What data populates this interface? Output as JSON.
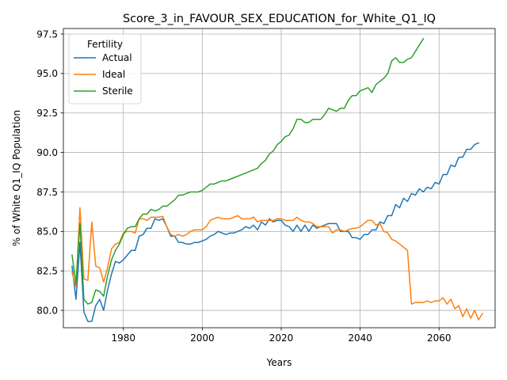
{
  "chart_data": {
    "type": "line",
    "title": "Score_3_in_FAVOUR_SEX_EDUCATION_for_White_Q1_IQ",
    "xlabel": "Years",
    "ylabel": "% of White Q1_IQ Population",
    "xlim": [
      1964.8,
      2074.2
    ],
    "ylim": [
      78.9,
      97.85
    ],
    "xticks": [
      1980,
      2000,
      2020,
      2040,
      2060
    ],
    "yticks": [
      80.0,
      82.5,
      85.0,
      87.5,
      90.0,
      92.5,
      95.0,
      97.5
    ],
    "xtick_labels": [
      "1980",
      "2000",
      "2020",
      "2040",
      "2060"
    ],
    "ytick_labels": [
      "80.0",
      "82.5",
      "85.0",
      "87.5",
      "90.0",
      "92.5",
      "95.0",
      "97.5"
    ],
    "grid": true,
    "legend": {
      "title": "Fertility",
      "placement": "top-left"
    },
    "series": [
      {
        "name": "Actual",
        "color": "#1f77b4",
        "points": [
          [
            1967,
            82.8
          ],
          [
            1968,
            80.7
          ],
          [
            1969,
            84.3
          ],
          [
            1970,
            79.9
          ],
          [
            1971,
            79.3
          ],
          [
            1972,
            79.3
          ],
          [
            1973,
            80.3
          ],
          [
            1974,
            80.7
          ],
          [
            1975,
            80.0
          ],
          [
            1976,
            81.3
          ],
          [
            1977,
            82.3
          ],
          [
            1978,
            83.1
          ],
          [
            1979,
            83.0
          ],
          [
            1980,
            83.2
          ],
          [
            1981,
            83.5
          ],
          [
            1982,
            83.8
          ],
          [
            1983,
            83.8
          ],
          [
            1984,
            84.7
          ],
          [
            1985,
            84.8
          ],
          [
            1986,
            85.2
          ],
          [
            1987,
            85.2
          ],
          [
            1988,
            85.8
          ],
          [
            1989,
            85.7
          ],
          [
            1990,
            85.8
          ],
          [
            1991,
            85.3
          ],
          [
            1992,
            84.7
          ],
          [
            1993,
            84.7
          ],
          [
            1994,
            84.3
          ],
          [
            1995,
            84.3
          ],
          [
            1996,
            84.2
          ],
          [
            1997,
            84.2
          ],
          [
            1998,
            84.3
          ],
          [
            1999,
            84.3
          ],
          [
            2000,
            84.4
          ],
          [
            2001,
            84.5
          ],
          [
            2002,
            84.7
          ],
          [
            2003,
            84.8
          ],
          [
            2004,
            85.0
          ],
          [
            2005,
            84.9
          ],
          [
            2006,
            84.8
          ],
          [
            2007,
            84.9
          ],
          [
            2008,
            84.9
          ],
          [
            2009,
            85.0
          ],
          [
            2010,
            85.1
          ],
          [
            2011,
            85.3
          ],
          [
            2012,
            85.2
          ],
          [
            2013,
            85.4
          ],
          [
            2014,
            85.1
          ],
          [
            2015,
            85.6
          ],
          [
            2016,
            85.4
          ],
          [
            2017,
            85.8
          ],
          [
            2018,
            85.6
          ],
          [
            2019,
            85.7
          ],
          [
            2020,
            85.7
          ],
          [
            2021,
            85.4
          ],
          [
            2022,
            85.3
          ],
          [
            2023,
            85.0
          ],
          [
            2024,
            85.4
          ],
          [
            2025,
            85.0
          ],
          [
            2026,
            85.4
          ],
          [
            2027,
            85.0
          ],
          [
            2028,
            85.4
          ],
          [
            2029,
            85.2
          ],
          [
            2030,
            85.3
          ],
          [
            2031,
            85.4
          ],
          [
            2032,
            85.5
          ],
          [
            2033,
            85.5
          ],
          [
            2034,
            85.5
          ],
          [
            2035,
            85.0
          ],
          [
            2036,
            85.0
          ],
          [
            2037,
            85.0
          ],
          [
            2038,
            84.6
          ],
          [
            2039,
            84.6
          ],
          [
            2040,
            84.5
          ],
          [
            2041,
            84.8
          ],
          [
            2042,
            84.8
          ],
          [
            2043,
            85.1
          ],
          [
            2044,
            85.1
          ],
          [
            2045,
            85.6
          ],
          [
            2046,
            85.5
          ],
          [
            2047,
            86.0
          ],
          [
            2048,
            86.0
          ],
          [
            2049,
            86.7
          ],
          [
            2050,
            86.5
          ],
          [
            2051,
            87.1
          ],
          [
            2052,
            86.9
          ],
          [
            2053,
            87.4
          ],
          [
            2054,
            87.3
          ],
          [
            2055,
            87.7
          ],
          [
            2056,
            87.5
          ],
          [
            2057,
            87.8
          ],
          [
            2058,
            87.7
          ],
          [
            2059,
            88.1
          ],
          [
            2060,
            88.0
          ],
          [
            2061,
            88.6
          ],
          [
            2062,
            88.6
          ],
          [
            2063,
            89.2
          ],
          [
            2064,
            89.1
          ],
          [
            2065,
            89.7
          ],
          [
            2066,
            89.7
          ],
          [
            2067,
            90.2
          ],
          [
            2068,
            90.2
          ],
          [
            2069,
            90.5
          ],
          [
            2070,
            90.6
          ]
        ]
      },
      {
        "name": "Ideal",
        "color": "#ff7f0e",
        "points": [
          [
            1967,
            82.4
          ],
          [
            1968,
            81.5
          ],
          [
            1969,
            86.5
          ],
          [
            1970,
            82.0
          ],
          [
            1971,
            81.9
          ],
          [
            1972,
            85.6
          ],
          [
            1973,
            82.8
          ],
          [
            1974,
            82.7
          ],
          [
            1975,
            81.8
          ],
          [
            1976,
            82.7
          ],
          [
            1977,
            83.9
          ],
          [
            1978,
            84.2
          ],
          [
            1979,
            84.3
          ],
          [
            1980,
            84.9
          ],
          [
            1981,
            85.0
          ],
          [
            1982,
            85.0
          ],
          [
            1983,
            84.9
          ],
          [
            1984,
            85.8
          ],
          [
            1985,
            85.8
          ],
          [
            1986,
            85.7
          ],
          [
            1987,
            85.9
          ],
          [
            1988,
            85.9
          ],
          [
            1989,
            85.9
          ],
          [
            1990,
            85.95
          ],
          [
            1991,
            85.3
          ],
          [
            1992,
            84.8
          ],
          [
            1993,
            84.7
          ],
          [
            1994,
            84.8
          ],
          [
            1995,
            84.7
          ],
          [
            1996,
            84.8
          ],
          [
            1997,
            85.0
          ],
          [
            1998,
            85.1
          ],
          [
            1999,
            85.1
          ],
          [
            2000,
            85.1
          ],
          [
            2001,
            85.3
          ],
          [
            2002,
            85.7
          ],
          [
            2003,
            85.8
          ],
          [
            2004,
            85.9
          ],
          [
            2005,
            85.8
          ],
          [
            2006,
            85.8
          ],
          [
            2007,
            85.8
          ],
          [
            2008,
            85.9
          ],
          [
            2009,
            86.0
          ],
          [
            2010,
            85.8
          ],
          [
            2011,
            85.8
          ],
          [
            2012,
            85.8
          ],
          [
            2013,
            85.9
          ],
          [
            2014,
            85.6
          ],
          [
            2015,
            85.7
          ],
          [
            2016,
            85.7
          ],
          [
            2017,
            85.7
          ],
          [
            2018,
            85.7
          ],
          [
            2019,
            85.8
          ],
          [
            2020,
            85.8
          ],
          [
            2021,
            85.7
          ],
          [
            2022,
            85.7
          ],
          [
            2023,
            85.7
          ],
          [
            2024,
            85.9
          ],
          [
            2025,
            85.7
          ],
          [
            2026,
            85.6
          ],
          [
            2027,
            85.6
          ],
          [
            2028,
            85.5
          ],
          [
            2029,
            85.3
          ],
          [
            2030,
            85.3
          ],
          [
            2031,
            85.3
          ],
          [
            2032,
            85.3
          ],
          [
            2033,
            84.9
          ],
          [
            2034,
            85.1
          ],
          [
            2035,
            85.1
          ],
          [
            2036,
            85.0
          ],
          [
            2037,
            85.1
          ],
          [
            2038,
            85.2
          ],
          [
            2039,
            85.2
          ],
          [
            2040,
            85.3
          ],
          [
            2041,
            85.5
          ],
          [
            2042,
            85.7
          ],
          [
            2043,
            85.7
          ],
          [
            2044,
            85.4
          ],
          [
            2045,
            85.5
          ],
          [
            2046,
            85.0
          ],
          [
            2047,
            84.9
          ],
          [
            2048,
            84.5
          ],
          [
            2049,
            84.4
          ],
          [
            2050,
            84.2
          ],
          [
            2051,
            84.0
          ],
          [
            2052,
            83.8
          ],
          [
            2053,
            80.4
          ],
          [
            2054,
            80.5
          ],
          [
            2055,
            80.5
          ],
          [
            2056,
            80.5
          ],
          [
            2057,
            80.6
          ],
          [
            2058,
            80.5
          ],
          [
            2059,
            80.6
          ],
          [
            2060,
            80.6
          ],
          [
            2061,
            80.8
          ],
          [
            2062,
            80.4
          ],
          [
            2063,
            80.7
          ],
          [
            2064,
            80.1
          ],
          [
            2065,
            80.3
          ],
          [
            2066,
            79.6
          ],
          [
            2067,
            80.1
          ],
          [
            2068,
            79.5
          ],
          [
            2069,
            80.0
          ],
          [
            2070,
            79.4
          ],
          [
            2071,
            79.8
          ]
        ]
      },
      {
        "name": "Sterile",
        "color": "#2ca02c",
        "points": [
          [
            1967,
            83.5
          ],
          [
            1968,
            81.7
          ],
          [
            1969,
            85.5
          ],
          [
            1970,
            80.7
          ],
          [
            1971,
            80.4
          ],
          [
            1972,
            80.5
          ],
          [
            1973,
            81.3
          ],
          [
            1974,
            81.2
          ],
          [
            1975,
            80.9
          ],
          [
            1976,
            82.2
          ],
          [
            1977,
            83.2
          ],
          [
            1978,
            83.8
          ],
          [
            1979,
            84.2
          ],
          [
            1980,
            84.8
          ],
          [
            1981,
            85.2
          ],
          [
            1982,
            85.3
          ],
          [
            1983,
            85.3
          ],
          [
            1984,
            85.8
          ],
          [
            1985,
            86.1
          ],
          [
            1986,
            86.1
          ],
          [
            1987,
            86.4
          ],
          [
            1988,
            86.3
          ],
          [
            1989,
            86.4
          ],
          [
            1990,
            86.6
          ],
          [
            1991,
            86.6
          ],
          [
            1992,
            86.8
          ],
          [
            1993,
            87.0
          ],
          [
            1994,
            87.3
          ],
          [
            1995,
            87.3
          ],
          [
            1996,
            87.4
          ],
          [
            1997,
            87.5
          ],
          [
            1998,
            87.5
          ],
          [
            1999,
            87.5
          ],
          [
            2000,
            87.6
          ],
          [
            2001,
            87.8
          ],
          [
            2002,
            88.0
          ],
          [
            2003,
            88.0
          ],
          [
            2004,
            88.1
          ],
          [
            2005,
            88.2
          ],
          [
            2006,
            88.2
          ],
          [
            2007,
            88.3
          ],
          [
            2008,
            88.4
          ],
          [
            2009,
            88.5
          ],
          [
            2010,
            88.6
          ],
          [
            2011,
            88.7
          ],
          [
            2012,
            88.8
          ],
          [
            2013,
            88.9
          ],
          [
            2014,
            89.0
          ],
          [
            2015,
            89.3
          ],
          [
            2016,
            89.5
          ],
          [
            2017,
            89.9
          ],
          [
            2018,
            90.1
          ],
          [
            2019,
            90.5
          ],
          [
            2020,
            90.7
          ],
          [
            2021,
            91.0
          ],
          [
            2022,
            91.1
          ],
          [
            2023,
            91.5
          ],
          [
            2024,
            92.1
          ],
          [
            2025,
            92.1
          ],
          [
            2026,
            91.9
          ],
          [
            2027,
            91.9
          ],
          [
            2028,
            92.1
          ],
          [
            2029,
            92.1
          ],
          [
            2030,
            92.1
          ],
          [
            2031,
            92.4
          ],
          [
            2032,
            92.8
          ],
          [
            2033,
            92.7
          ],
          [
            2034,
            92.6
          ],
          [
            2035,
            92.8
          ],
          [
            2036,
            92.8
          ],
          [
            2037,
            93.3
          ],
          [
            2038,
            93.6
          ],
          [
            2039,
            93.6
          ],
          [
            2040,
            93.9
          ],
          [
            2041,
            94.0
          ],
          [
            2042,
            94.1
          ],
          [
            2043,
            93.8
          ],
          [
            2044,
            94.3
          ],
          [
            2045,
            94.5
          ],
          [
            2046,
            94.7
          ],
          [
            2047,
            95.0
          ],
          [
            2048,
            95.8
          ],
          [
            2049,
            96.0
          ],
          [
            2050,
            95.7
          ],
          [
            2051,
            95.7
          ],
          [
            2052,
            95.9
          ],
          [
            2053,
            96.0
          ],
          [
            2054,
            96.4
          ],
          [
            2055,
            96.8
          ],
          [
            2056,
            97.2
          ]
        ]
      }
    ]
  }
}
